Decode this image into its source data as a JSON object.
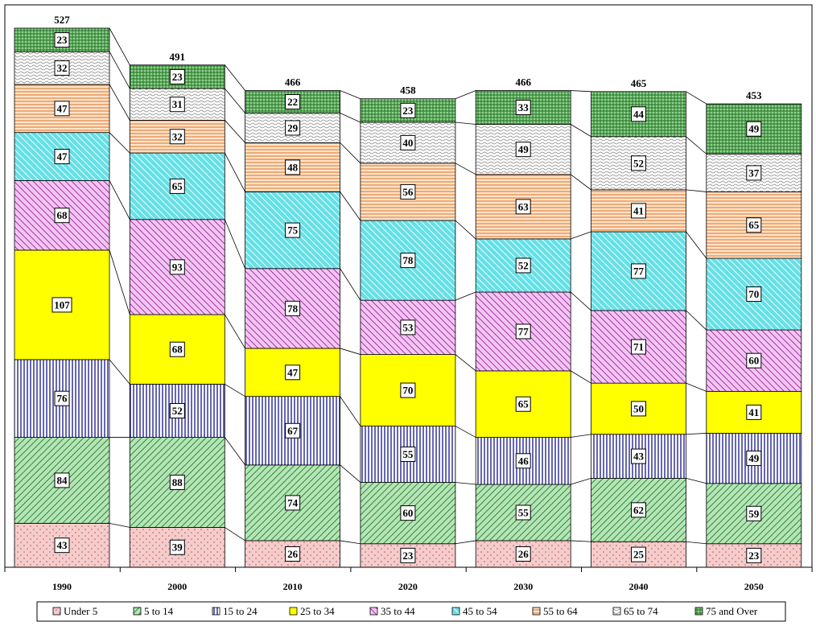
{
  "chart_data": {
    "type": "bar",
    "stacked": true,
    "title": "",
    "xlabel": "",
    "ylabel": "",
    "categories": [
      "1990",
      "2000",
      "2010",
      "2020",
      "2030",
      "2040",
      "2050"
    ],
    "totals": [
      527,
      491,
      466,
      458,
      466,
      465,
      453
    ],
    "ylim": [
      0,
      527
    ],
    "grid": false,
    "legend_position": "bottom",
    "series": [
      {
        "name": "Under 5",
        "color": "#f4cccc",
        "pattern": "dots",
        "values": [
          43,
          39,
          26,
          23,
          26,
          25,
          23
        ]
      },
      {
        "name": "5 to 14",
        "color": "#b7e4b7",
        "pattern": "diagonal",
        "values": [
          84,
          88,
          74,
          60,
          55,
          62,
          59
        ]
      },
      {
        "name": "15 to 24",
        "color": "#ffffff",
        "pattern": "vertical",
        "values": [
          76,
          52,
          67,
          55,
          46,
          43,
          49
        ]
      },
      {
        "name": "25 to 34",
        "color": "#ffff00",
        "pattern": "solid",
        "values": [
          107,
          68,
          47,
          70,
          65,
          50,
          41
        ]
      },
      {
        "name": "35 to 44",
        "color": "#f2c6f2",
        "pattern": "diagonal2",
        "values": [
          68,
          93,
          78,
          53,
          77,
          71,
          60
        ]
      },
      {
        "name": "45 to 54",
        "color": "#66e0e6",
        "pattern": "diagonal3",
        "values": [
          47,
          65,
          75,
          78,
          52,
          77,
          70
        ]
      },
      {
        "name": "55 to 64",
        "color": "#fde4cc",
        "pattern": "horizontal",
        "values": [
          47,
          32,
          48,
          56,
          63,
          41,
          65
        ]
      },
      {
        "name": "65 to 74",
        "color": "#ffffff",
        "pattern": "wave",
        "values": [
          32,
          31,
          29,
          40,
          49,
          52,
          37
        ]
      },
      {
        "name": "75 and Over",
        "color": "#8fd18f",
        "pattern": "grid",
        "values": [
          23,
          23,
          22,
          23,
          33,
          44,
          49
        ]
      }
    ]
  }
}
